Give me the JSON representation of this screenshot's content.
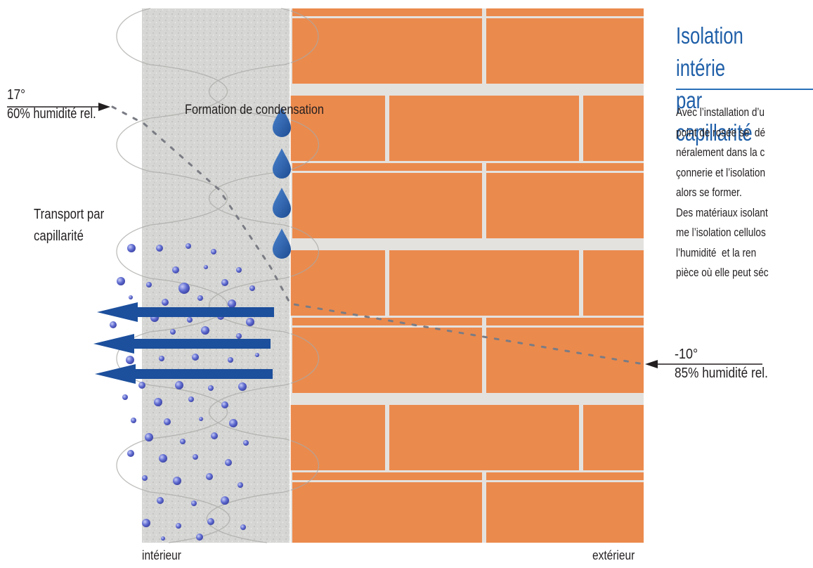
{
  "title_lines": [
    "Isolation intérie",
    "par capillarité"
  ],
  "body_lines": [
    "Avec l’installation d’u",
    "point de rosée se  dé",
    "néralement dans la c",
    "çonnerie et l’isolation",
    "alors se former.",
    "Des matériaux isolant",
    "me l’isolation cellulos",
    "l’humidité  et la ren",
    "pièce où elle peut séc"
  ],
  "labels": {
    "condensation": "Formation de condensation",
    "transport": "Transport par\ncapillarité",
    "interieur": "intérieur",
    "exterieur": "extérieur"
  },
  "inside": {
    "temperature": "17°",
    "humidity": "60% humidité rel."
  },
  "outside": {
    "temperature": "-10°",
    "humidity": "85% humidité rel."
  },
  "colors": {
    "brick": "#eb8a4d",
    "mortar": "#e4e2df",
    "insulation": "#dcdcda",
    "water": "#2a5ca8",
    "arrow": "#1c4f9c",
    "title": "#1f5fa8"
  }
}
